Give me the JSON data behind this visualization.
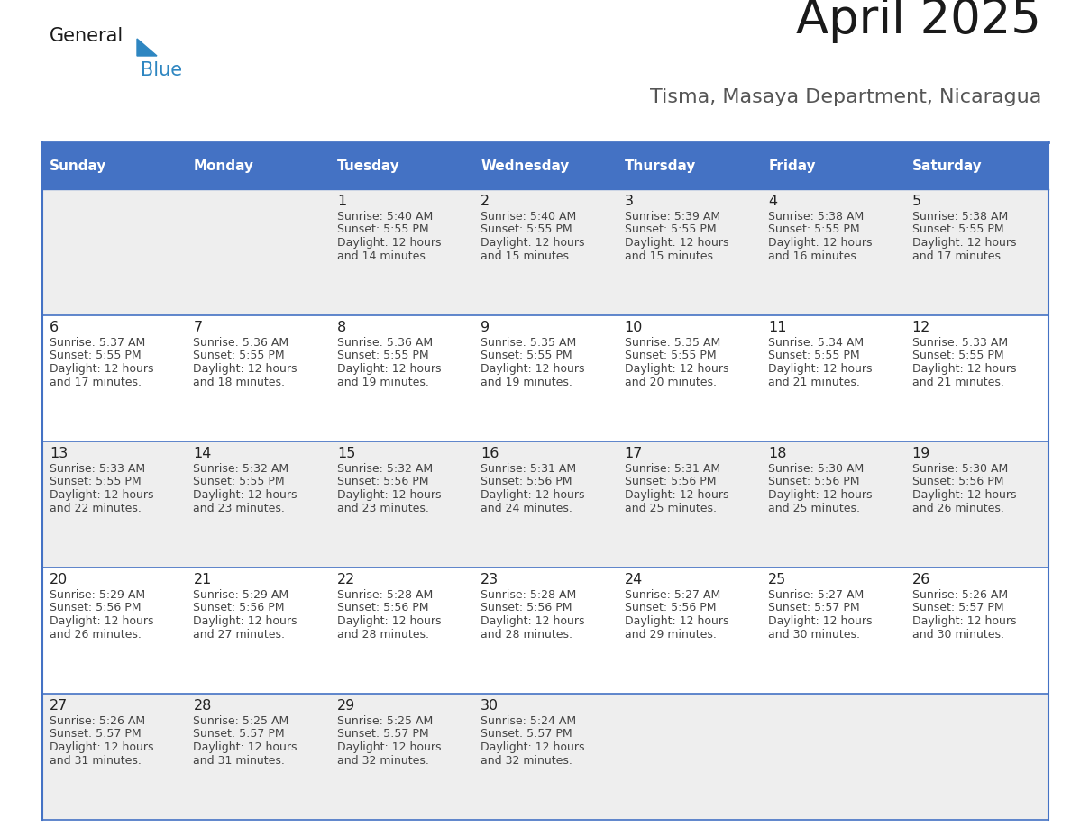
{
  "title": "April 2025",
  "subtitle": "Tisma, Masaya Department, Nicaragua",
  "days_of_week": [
    "Sunday",
    "Monday",
    "Tuesday",
    "Wednesday",
    "Thursday",
    "Friday",
    "Saturday"
  ],
  "header_bg": "#4472C4",
  "header_text_color": "#FFFFFF",
  "border_color": "#4472C4",
  "row_bg_even": "#EEEEEE",
  "row_bg_odd": "#FFFFFF",
  "text_color": "#444444",
  "day_num_color": "#222222",
  "title_color": "#1a1a1a",
  "logo_black": "#1a1a1a",
  "logo_blue": "#2E86C1",
  "calendar_data": [
    [
      null,
      null,
      {
        "day": 1,
        "sunrise": "5:40 AM",
        "sunset": "5:55 PM",
        "daylight": "12 hours and 14 minutes."
      },
      {
        "day": 2,
        "sunrise": "5:40 AM",
        "sunset": "5:55 PM",
        "daylight": "12 hours and 15 minutes."
      },
      {
        "day": 3,
        "sunrise": "5:39 AM",
        "sunset": "5:55 PM",
        "daylight": "12 hours and 15 minutes."
      },
      {
        "day": 4,
        "sunrise": "5:38 AM",
        "sunset": "5:55 PM",
        "daylight": "12 hours and 16 minutes."
      },
      {
        "day": 5,
        "sunrise": "5:38 AM",
        "sunset": "5:55 PM",
        "daylight": "12 hours and 17 minutes."
      }
    ],
    [
      {
        "day": 6,
        "sunrise": "5:37 AM",
        "sunset": "5:55 PM",
        "daylight": "12 hours and 17 minutes."
      },
      {
        "day": 7,
        "sunrise": "5:36 AM",
        "sunset": "5:55 PM",
        "daylight": "12 hours and 18 minutes."
      },
      {
        "day": 8,
        "sunrise": "5:36 AM",
        "sunset": "5:55 PM",
        "daylight": "12 hours and 19 minutes."
      },
      {
        "day": 9,
        "sunrise": "5:35 AM",
        "sunset": "5:55 PM",
        "daylight": "12 hours and 19 minutes."
      },
      {
        "day": 10,
        "sunrise": "5:35 AM",
        "sunset": "5:55 PM",
        "daylight": "12 hours and 20 minutes."
      },
      {
        "day": 11,
        "sunrise": "5:34 AM",
        "sunset": "5:55 PM",
        "daylight": "12 hours and 21 minutes."
      },
      {
        "day": 12,
        "sunrise": "5:33 AM",
        "sunset": "5:55 PM",
        "daylight": "12 hours and 21 minutes."
      }
    ],
    [
      {
        "day": 13,
        "sunrise": "5:33 AM",
        "sunset": "5:55 PM",
        "daylight": "12 hours and 22 minutes."
      },
      {
        "day": 14,
        "sunrise": "5:32 AM",
        "sunset": "5:55 PM",
        "daylight": "12 hours and 23 minutes."
      },
      {
        "day": 15,
        "sunrise": "5:32 AM",
        "sunset": "5:56 PM",
        "daylight": "12 hours and 23 minutes."
      },
      {
        "day": 16,
        "sunrise": "5:31 AM",
        "sunset": "5:56 PM",
        "daylight": "12 hours and 24 minutes."
      },
      {
        "day": 17,
        "sunrise": "5:31 AM",
        "sunset": "5:56 PM",
        "daylight": "12 hours and 25 minutes."
      },
      {
        "day": 18,
        "sunrise": "5:30 AM",
        "sunset": "5:56 PM",
        "daylight": "12 hours and 25 minutes."
      },
      {
        "day": 19,
        "sunrise": "5:30 AM",
        "sunset": "5:56 PM",
        "daylight": "12 hours and 26 minutes."
      }
    ],
    [
      {
        "day": 20,
        "sunrise": "5:29 AM",
        "sunset": "5:56 PM",
        "daylight": "12 hours and 26 minutes."
      },
      {
        "day": 21,
        "sunrise": "5:29 AM",
        "sunset": "5:56 PM",
        "daylight": "12 hours and 27 minutes."
      },
      {
        "day": 22,
        "sunrise": "5:28 AM",
        "sunset": "5:56 PM",
        "daylight": "12 hours and 28 minutes."
      },
      {
        "day": 23,
        "sunrise": "5:28 AM",
        "sunset": "5:56 PM",
        "daylight": "12 hours and 28 minutes."
      },
      {
        "day": 24,
        "sunrise": "5:27 AM",
        "sunset": "5:56 PM",
        "daylight": "12 hours and 29 minutes."
      },
      {
        "day": 25,
        "sunrise": "5:27 AM",
        "sunset": "5:57 PM",
        "daylight": "12 hours and 30 minutes."
      },
      {
        "day": 26,
        "sunrise": "5:26 AM",
        "sunset": "5:57 PM",
        "daylight": "12 hours and 30 minutes."
      }
    ],
    [
      {
        "day": 27,
        "sunrise": "5:26 AM",
        "sunset": "5:57 PM",
        "daylight": "12 hours and 31 minutes."
      },
      {
        "day": 28,
        "sunrise": "5:25 AM",
        "sunset": "5:57 PM",
        "daylight": "12 hours and 31 minutes."
      },
      {
        "day": 29,
        "sunrise": "5:25 AM",
        "sunset": "5:57 PM",
        "daylight": "12 hours and 32 minutes."
      },
      {
        "day": 30,
        "sunrise": "5:24 AM",
        "sunset": "5:57 PM",
        "daylight": "12 hours and 32 minutes."
      },
      null,
      null,
      null
    ]
  ]
}
